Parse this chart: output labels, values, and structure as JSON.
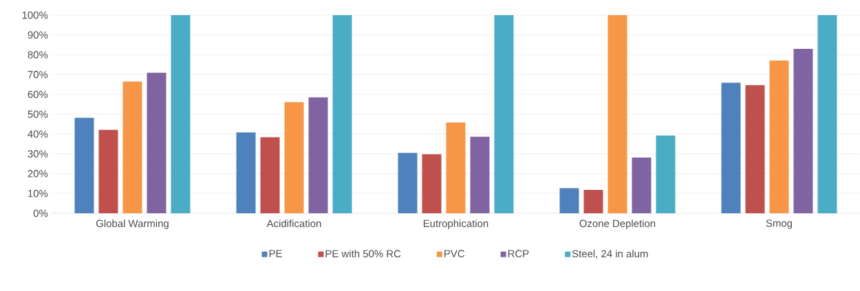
{
  "chart_data": {
    "type": "bar",
    "categories": [
      "Global Warming",
      "Acidification",
      "Eutrophication",
      "Ozone Depletion",
      "Smog"
    ],
    "series": [
      {
        "name": "PE",
        "color": "#4f81bd",
        "values": [
          48.2,
          40.8,
          30.5,
          12.7,
          65.9
        ]
      },
      {
        "name": "PE with 50% RC",
        "color": "#c0504d",
        "values": [
          42.1,
          38.4,
          29.8,
          11.8,
          64.7
        ]
      },
      {
        "name": "PVC",
        "color": "#f79646",
        "values": [
          66.5,
          56.1,
          45.8,
          100,
          77.1
        ]
      },
      {
        "name": "RCP",
        "color": "#8064a2",
        "values": [
          70.9,
          58.5,
          38.6,
          28.1,
          83.0
        ]
      },
      {
        "name": "Steel, 24 in alum",
        "color": "#4bacc6",
        "values": [
          100,
          100,
          100,
          39.2,
          100
        ]
      }
    ],
    "ylim": [
      0,
      100
    ],
    "yticks": [
      {
        "value": 0,
        "label": "0%"
      },
      {
        "value": 10,
        "label": "10%"
      },
      {
        "value": 20,
        "label": "20%"
      },
      {
        "value": 30,
        "label": "30%"
      },
      {
        "value": 40,
        "label": "40%"
      },
      {
        "value": 50,
        "label": "50%"
      },
      {
        "value": 60,
        "label": "60%"
      },
      {
        "value": 70,
        "label": "70%"
      },
      {
        "value": 80,
        "label": "80%"
      },
      {
        "value": 90,
        "label": "90%"
      },
      {
        "value": 100,
        "label": "100%"
      }
    ],
    "grid": "y",
    "legend": "bottom"
  }
}
